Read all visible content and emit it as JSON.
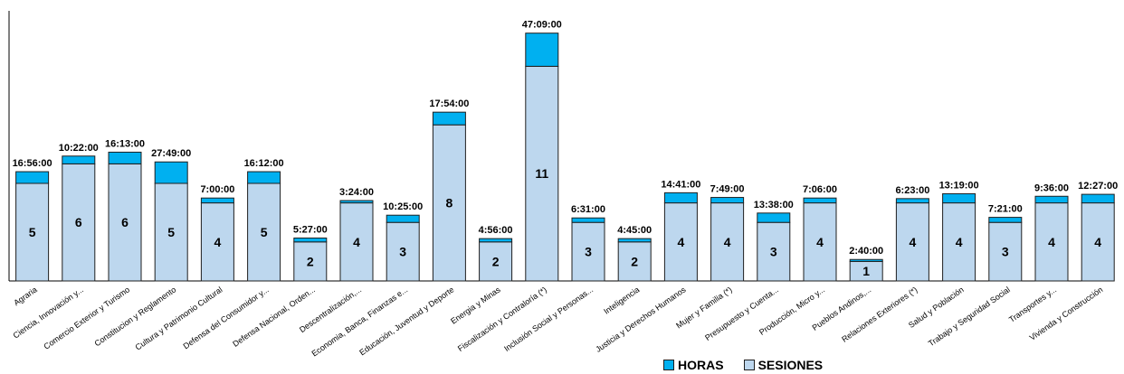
{
  "chart_data": {
    "type": "bar",
    "stacked": true,
    "categories": [
      "Agraria",
      "Ciencia, Innovación y...",
      "Comercio Exterior y Turismo",
      "Constitucion y Reglamento",
      "Cultura y Patrimonio Cultural",
      "Defensa del Consumidor y...",
      "Defensa Nacional, Orden...",
      "Descentralización,...",
      "Economia, Banca, Finanzas e...",
      "Educación, Juventud y Deporte",
      "Energia y Minas",
      "Fiscalización  y Contraloría  (*)",
      "Inclusión Social y Personas...",
      "Inteligencia",
      "Justicia y Derechos Humanos",
      "Mujer y Familia  (*)",
      "Presupuesto y Cuenta...",
      "Producción, Micro y...",
      "Pueblos Andinos,...",
      "Relaciones Exteriores  (*)",
      "Salud y Población",
      "Trabajo y Seguridad Social",
      "Transportes y...",
      "Vivienda y Construcción"
    ],
    "series": [
      {
        "name": "SESIONES",
        "color": "#bdd7ee",
        "values": [
          5,
          6,
          6,
          5,
          4,
          5,
          2,
          4,
          3,
          8,
          2,
          11,
          3,
          2,
          4,
          4,
          3,
          4,
          1,
          4,
          4,
          3,
          4,
          4
        ]
      },
      {
        "name": "HORAS",
        "color": "#00b0f0",
        "values": [
          0.6,
          0.4,
          0.6,
          1.1,
          0.25,
          0.6,
          0.2,
          0.12,
          0.37,
          0.65,
          0.17,
          1.7,
          0.23,
          0.17,
          0.52,
          0.28,
          0.48,
          0.25,
          0.1,
          0.22,
          0.47,
          0.26,
          0.34,
          0.44
        ],
        "labels": [
          "16:56:00",
          "10:22:00",
          "16:13:00",
          "27:49:00",
          "7:00:00",
          "16:12:00",
          "5:27:00",
          "3:24:00",
          "10:25:00",
          "17:54:00",
          "4:56:00",
          "47:09:00",
          "6:31:00",
          "4:45:00",
          "14:41:00",
          "7:49:00",
          "13:38:00",
          "7:06:00",
          "2:40:00",
          "6:23:00",
          "13:19:00",
          "7:21:00",
          "9:36:00",
          "12:27:00"
        ]
      }
    ],
    "legend": [
      "HORAS",
      "SESIONES"
    ],
    "legend_position": "bottom-right",
    "title": "",
    "xlabel": "",
    "ylabel": "",
    "grid": false
  }
}
